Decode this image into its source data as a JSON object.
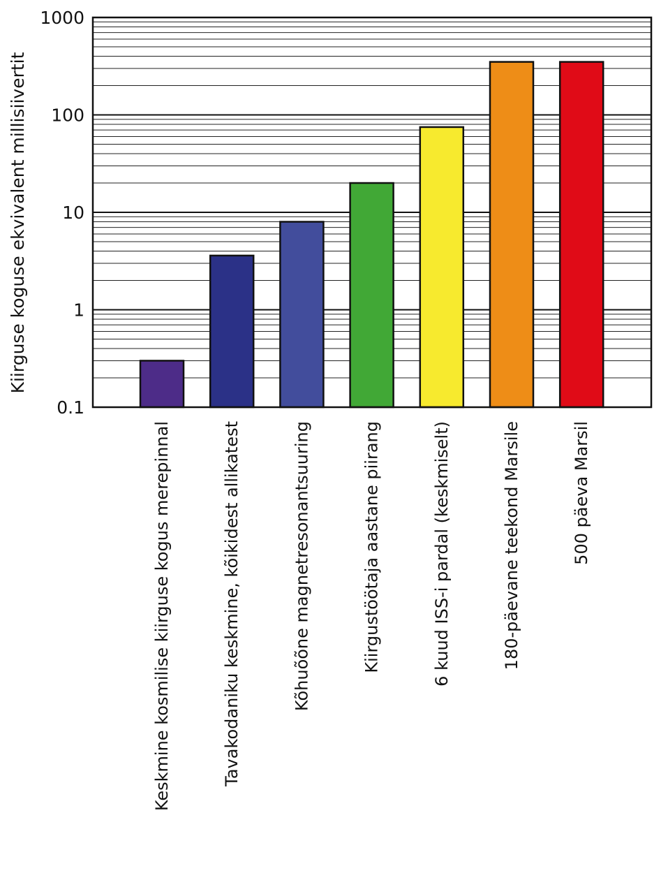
{
  "chart_data": {
    "type": "bar",
    "scale": "log",
    "title": "",
    "xlabel": "",
    "ylabel": "Kiirguse koguse ekvivalent millisiivertit",
    "ylim": [
      0.1,
      1000
    ],
    "yticks": [
      0.1,
      1,
      10,
      100,
      1000
    ],
    "ytick_labels": [
      "0.1",
      "1",
      "10",
      "100",
      "1000"
    ],
    "grid": true,
    "categories": [
      "Keskmine kosmilise kiirguse kogus merepinnal",
      "Tavakodaniku keskmine, kõikidest allikatest",
      "Kõhuõõne magnetresonantsuuring",
      "Kiirgustöötaja aastane piirang",
      "6 kuud ISS-i pardal (keskmiselt)",
      "180-päevane teekond Marsile",
      "500 päeva Marsil"
    ],
    "values": [
      0.3,
      3.6,
      8,
      20,
      75,
      350,
      350
    ],
    "colors": [
      "#4d2c88",
      "#2b3187",
      "#424d9c",
      "#41a836",
      "#f7ea2e",
      "#ee8d17",
      "#e00b17"
    ]
  }
}
